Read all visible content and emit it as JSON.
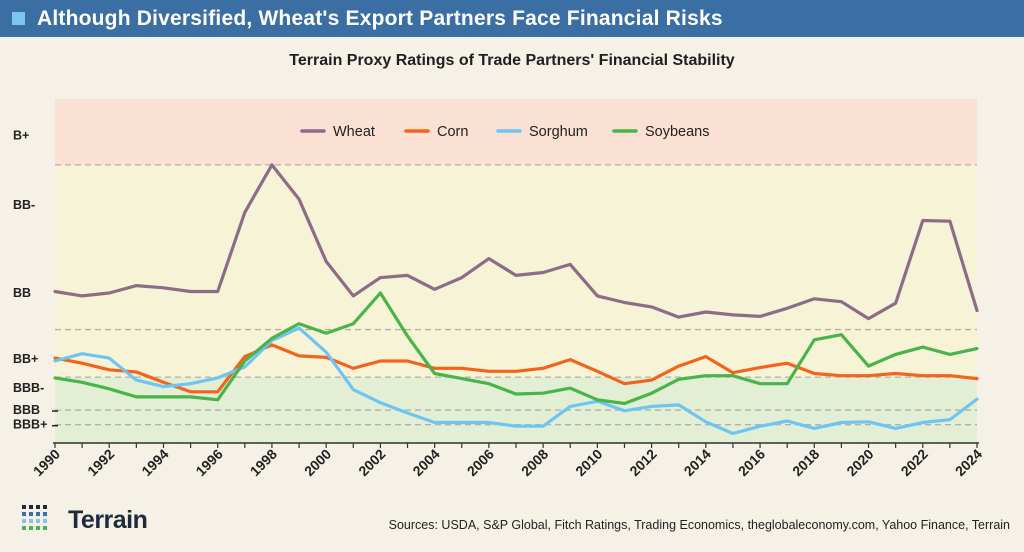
{
  "header": {
    "title": "Although Diversified, Wheat's Export Partners Face Financial Risks"
  },
  "brand": {
    "name": "Terrain",
    "accent": "#3b6ea3",
    "square_color": "#7cc6ee"
  },
  "sources": "Sources: USDA, S&P Global, Fitch Ratings, Trading Economics, theglobaleconomy.com, Yahoo Finance, Terrain",
  "chart_data": {
    "type": "line",
    "title": "Terrain Proxy Ratings of Trade Partners' Financial Stability",
    "xlabel": "",
    "ylabel": "",
    "x": [
      1990,
      1991,
      1992,
      1993,
      1994,
      1995,
      1996,
      1997,
      1998,
      1999,
      2000,
      2001,
      2002,
      2003,
      2004,
      2005,
      2006,
      2007,
      2008,
      2009,
      2010,
      2011,
      2012,
      2013,
      2014,
      2015,
      2016,
      2017,
      2018,
      2019,
      2020,
      2021,
      2022,
      2023,
      2024
    ],
    "x_tick_labels": [
      "1990",
      "1992",
      "1994",
      "1996",
      "1998",
      "2000",
      "2002",
      "2004",
      "2006",
      "2008",
      "2010",
      "2012",
      "2014",
      "2016",
      "2018",
      "2020",
      "2022",
      "2024"
    ],
    "y_tick_labels": [
      "B+",
      "BB-",
      "BB",
      "BB+",
      "BBB-",
      "BBB",
      "BBB+"
    ],
    "y_tick_values": [
      7.5,
      6.55,
      5.35,
      4.45,
      4.05,
      3.75,
      3.55
    ],
    "bands": [
      {
        "from": 3.3,
        "to": 4.2,
        "color": "#e2efd4"
      },
      {
        "from": 4.2,
        "to": 7.1,
        "color": "#f7f3d7"
      },
      {
        "from": 7.1,
        "to": 8.0,
        "color": "#fbe1d4"
      }
    ],
    "gridlines": [
      3.3,
      3.55,
      3.75,
      4.2,
      4.85,
      7.1
    ],
    "ylim": [
      3.3,
      8.0
    ],
    "legend_position": "top-center",
    "series": [
      {
        "name": "Wheat",
        "color": "#8e6b86",
        "values": [
          5.37,
          5.31,
          5.35,
          5.45,
          5.42,
          5.37,
          5.37,
          6.45,
          7.1,
          6.63,
          5.78,
          5.31,
          5.56,
          5.59,
          5.4,
          5.56,
          5.82,
          5.59,
          5.63,
          5.74,
          5.31,
          5.22,
          5.16,
          5.02,
          5.09,
          5.05,
          5.03,
          5.14,
          5.27,
          5.23,
          5.0,
          5.21,
          6.34,
          6.33,
          5.11
        ]
      },
      {
        "name": "Corn",
        "color": "#f2641c",
        "values": [
          4.46,
          4.39,
          4.3,
          4.27,
          4.13,
          4.0,
          4.0,
          4.48,
          4.64,
          4.49,
          4.47,
          4.32,
          4.42,
          4.42,
          4.32,
          4.32,
          4.28,
          4.28,
          4.32,
          4.44,
          4.28,
          4.11,
          4.16,
          4.35,
          4.48,
          4.26,
          4.33,
          4.39,
          4.25,
          4.22,
          4.22,
          4.25,
          4.22,
          4.22,
          4.18
        ]
      },
      {
        "name": "Sorghum",
        "color": "#6ec5f3",
        "values": [
          4.42,
          4.52,
          4.46,
          4.16,
          4.07,
          4.11,
          4.19,
          4.34,
          4.7,
          4.87,
          4.54,
          4.03,
          3.85,
          3.71,
          3.58,
          3.58,
          3.58,
          3.53,
          3.53,
          3.8,
          3.87,
          3.74,
          3.8,
          3.82,
          3.59,
          3.43,
          3.53,
          3.6,
          3.5,
          3.58,
          3.59,
          3.5,
          3.58,
          3.62,
          3.9
        ]
      },
      {
        "name": "Soybeans",
        "color": "#49b44a",
        "values": [
          4.19,
          4.13,
          4.04,
          3.93,
          3.93,
          3.93,
          3.89,
          4.42,
          4.73,
          4.93,
          4.8,
          4.93,
          5.35,
          4.76,
          4.25,
          4.18,
          4.11,
          3.97,
          3.98,
          4.05,
          3.89,
          3.84,
          3.98,
          4.17,
          4.22,
          4.22,
          4.11,
          4.11,
          4.71,
          4.78,
          4.35,
          4.51,
          4.61,
          4.51,
          4.59
        ]
      }
    ]
  }
}
